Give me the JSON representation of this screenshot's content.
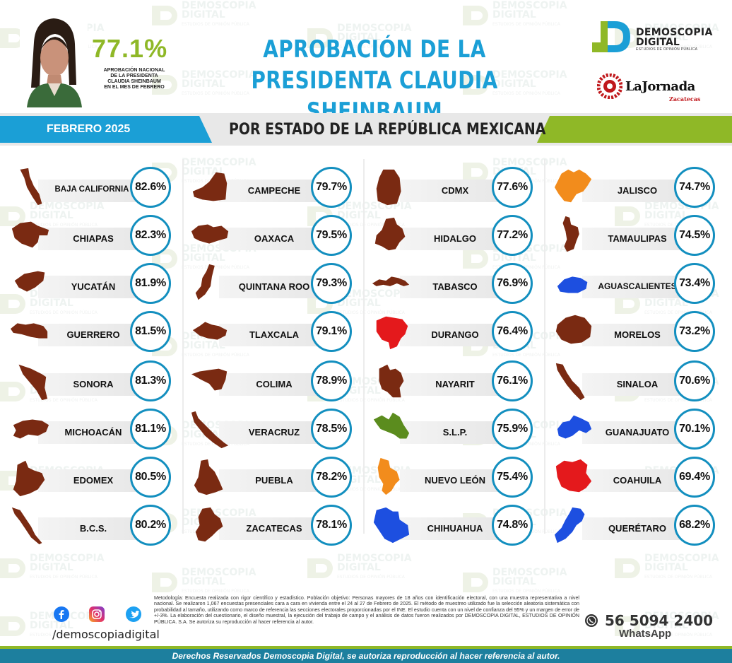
{
  "header": {
    "national_pct": "77.1%",
    "national_desc_lines": [
      "APROBACIÓN NACIONAL",
      "DE LA PRESIDENTA",
      "CLAUDIA SHEINBAUM",
      "EN EL MES DE FEBRERO"
    ],
    "title_line1": "APROBACIÓN DE LA",
    "title_line2": "PRESIDENTA CLAUDIA SHEINBAUM"
  },
  "logos": {
    "demoscopia_line1": "DEMOSCOPIA",
    "demoscopia_line2": "DIGITAL",
    "demoscopia_tagline": "ESTUDIOS DE OPINIÓN PÚBLICA",
    "jornada_name": "LaJornada",
    "jornada_sub": "Zacatecas"
  },
  "band": {
    "month": "FEBRERO 2025",
    "subtitle": "POR ESTADO DE LA REPÚBLICA MEXICANA"
  },
  "watermark": {
    "line1": "DEMOSCOPIA",
    "line2": "DIGITAL",
    "line3": "ESTUDIOS DE OPINIÓN PÚBLICA"
  },
  "colors": {
    "accent_blue": "#1b9fd6",
    "accent_green": "#8fb827",
    "map_brown": "#7a2a12",
    "map_orange": "#f28c1c",
    "map_red": "#e4191c",
    "map_olive": "#5b8c1e",
    "map_blue": "#1d4fe0",
    "circle_border": "#138fbf"
  },
  "states": [
    {
      "name": "BAJA CALIFORNIA",
      "pct": "82.6%",
      "color": "#7a2a12"
    },
    {
      "name": "CHIAPAS",
      "pct": "82.3%",
      "color": "#7a2a12"
    },
    {
      "name": "YUCATÁN",
      "pct": "81.9%",
      "color": "#7a2a12"
    },
    {
      "name": "GUERRERO",
      "pct": "81.5%",
      "color": "#7a2a12"
    },
    {
      "name": "SONORA",
      "pct": "81.3%",
      "color": "#7a2a12"
    },
    {
      "name": "MICHOACÁN",
      "pct": "81.1%",
      "color": "#7a2a12"
    },
    {
      "name": "EDOMEX",
      "pct": "80.5%",
      "color": "#7a2a12"
    },
    {
      "name": "B.C.S.",
      "pct": "80.2%",
      "color": "#7a2a12"
    },
    {
      "name": "CAMPECHE",
      "pct": "79.7%",
      "color": "#7a2a12"
    },
    {
      "name": "OAXACA",
      "pct": "79.5%",
      "color": "#7a2a12"
    },
    {
      "name": "QUINTANA ROO",
      "pct": "79.3%",
      "color": "#7a2a12"
    },
    {
      "name": "TLAXCALA",
      "pct": "79.1%",
      "color": "#7a2a12"
    },
    {
      "name": "COLIMA",
      "pct": "78.9%",
      "color": "#7a2a12"
    },
    {
      "name": "VERACRUZ",
      "pct": "78.5%",
      "color": "#7a2a12"
    },
    {
      "name": "PUEBLA",
      "pct": "78.2%",
      "color": "#7a2a12"
    },
    {
      "name": "ZACATECAS",
      "pct": "78.1%",
      "color": "#7a2a12"
    },
    {
      "name": "CDMX",
      "pct": "77.6%",
      "color": "#7a2a12"
    },
    {
      "name": "HIDALGO",
      "pct": "77.2%",
      "color": "#7a2a12"
    },
    {
      "name": "TABASCO",
      "pct": "76.9%",
      "color": "#7a2a12"
    },
    {
      "name": "DURANGO",
      "pct": "76.4%",
      "color": "#e4191c"
    },
    {
      "name": "NAYARIT",
      "pct": "76.1%",
      "color": "#7a2a12"
    },
    {
      "name": "S.L.P.",
      "pct": "75.9%",
      "color": "#5b8c1e"
    },
    {
      "name": "NUEVO LEÓN",
      "pct": "75.4%",
      "color": "#f28c1c"
    },
    {
      "name": "CHIHUAHUA",
      "pct": "74.8%",
      "color": "#1d4fe0"
    },
    {
      "name": "JALISCO",
      "pct": "74.7%",
      "color": "#f28c1c"
    },
    {
      "name": "TAMAULIPAS",
      "pct": "74.5%",
      "color": "#7a2a12"
    },
    {
      "name": "AGUASCALIENTES",
      "pct": "73.4%",
      "color": "#1d4fe0"
    },
    {
      "name": "MORELOS",
      "pct": "73.2%",
      "color": "#7a2a12"
    },
    {
      "name": "SINALOA",
      "pct": "70.6%",
      "color": "#7a2a12"
    },
    {
      "name": "GUANAJUATO",
      "pct": "70.1%",
      "color": "#1d4fe0"
    },
    {
      "name": "COAHUILA",
      "pct": "69.4%",
      "color": "#e4191c"
    },
    {
      "name": "QUERÉTARO",
      "pct": "68.2%",
      "color": "#1d4fe0"
    }
  ],
  "methodology": "Metodología: Encuesta realizada con rigor científico y estadístico. Población objetivo: Personas mayores de 18 años con identificación electoral, con una muestra representativa a nivel nacional. Se realizaron 1,067 encuestas presenciales cara a cara en vivienda entre el 24 al 27 de Febrero de 2025. El método de muestreo utilizado fue la selección aleatoria sistemática con probabilidad al tamaño, utilizando como marco de referencia las secciones electorales proporcionadas por el INE. El estudio cuenta con un nivel de confianza del 95% y un margen de error de +/-3%. La elaboración del cuestionario, el diseño muestral, la ejecución del trabajo de campo y el análisis de datos fueron realizados por DEMOSCOPIA DIGITAL, ESTUDIOS DE OPINIÓN PÚBLICA. S.A. Se autoriza su reproducción al hacer referencia al autor.",
  "social": {
    "handle": "/demoscopiadigital",
    "icons": [
      "facebook-icon",
      "instagram-icon",
      "twitter-icon"
    ]
  },
  "whatsapp": {
    "number": "56 5094 2400",
    "label": "WhatsApp"
  },
  "footer": "Derechos Reservados Demoscopia Digital, se autoriza reproducción al hacer referencia al autor."
}
